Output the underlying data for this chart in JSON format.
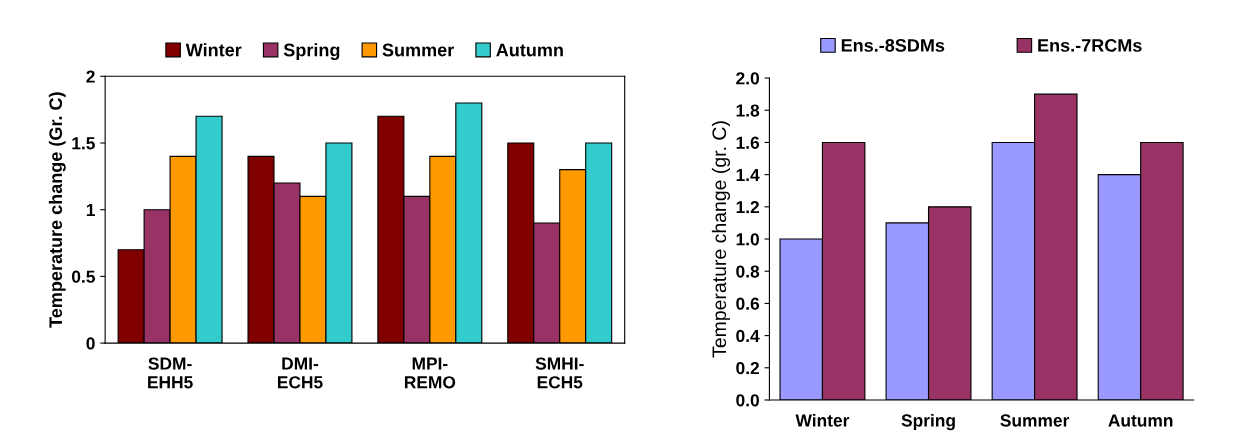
{
  "chart_data": [
    {
      "type": "bar",
      "ylabel": "Temperature change (Gr. C)",
      "categories": [
        "SDM-\nEHH5",
        "DMI-\nECH5",
        "MPI-\nREMO",
        "SMHI-\nECH5"
      ],
      "series": [
        {
          "name": "Winter",
          "color": "#800000",
          "values": [
            0.7,
            1.4,
            1.7,
            1.5
          ]
        },
        {
          "name": "Spring",
          "color": "#993366",
          "values": [
            1.0,
            1.2,
            1.1,
            0.9
          ]
        },
        {
          "name": "Summer",
          "color": "#ff9900",
          "values": [
            1.4,
            1.1,
            1.4,
            1.3
          ]
        },
        {
          "name": "Autumn",
          "color": "#33cccc",
          "values": [
            1.7,
            1.5,
            1.8,
            1.5
          ]
        }
      ],
      "ylim": [
        0,
        2
      ],
      "yticks": [
        0,
        {
          "value": 0.5,
          "label": "0.5"
        },
        1,
        {
          "value": 1.5,
          "label": "1.5"
        },
        2
      ],
      "grid": false,
      "legend": "top"
    },
    {
      "type": "bar",
      "ylabel": "Temperature change (gr. C)",
      "categories": [
        "Winter",
        "Spring",
        "Summer",
        "Autumn"
      ],
      "series": [
        {
          "name": "Ens.-8SDMs",
          "color": "#9999ff",
          "values": [
            1.0,
            1.1,
            1.6,
            1.4
          ]
        },
        {
          "name": "Ens.-7RCMs",
          "color": "#993366",
          "values": [
            1.6,
            1.2,
            1.9,
            1.6
          ]
        }
      ],
      "ylim": [
        0,
        2
      ],
      "yticks": [
        {
          "value": 0,
          "label": "0.0"
        },
        {
          "value": 0.2,
          "label": "0.2"
        },
        {
          "value": 0.4,
          "label": "0.4"
        },
        {
          "value": 0.6,
          "label": "0.6"
        },
        {
          "value": 0.8,
          "label": "0.8"
        },
        {
          "value": 1.0,
          "label": "1.0"
        },
        {
          "value": 1.2,
          "label": "1.2"
        },
        {
          "value": 1.4,
          "label": "1.4"
        },
        {
          "value": 1.6,
          "label": "1.6"
        },
        {
          "value": 1.8,
          "label": "1.8"
        },
        {
          "value": 2.0,
          "label": "2.0"
        }
      ],
      "grid": false,
      "legend": "top"
    }
  ]
}
